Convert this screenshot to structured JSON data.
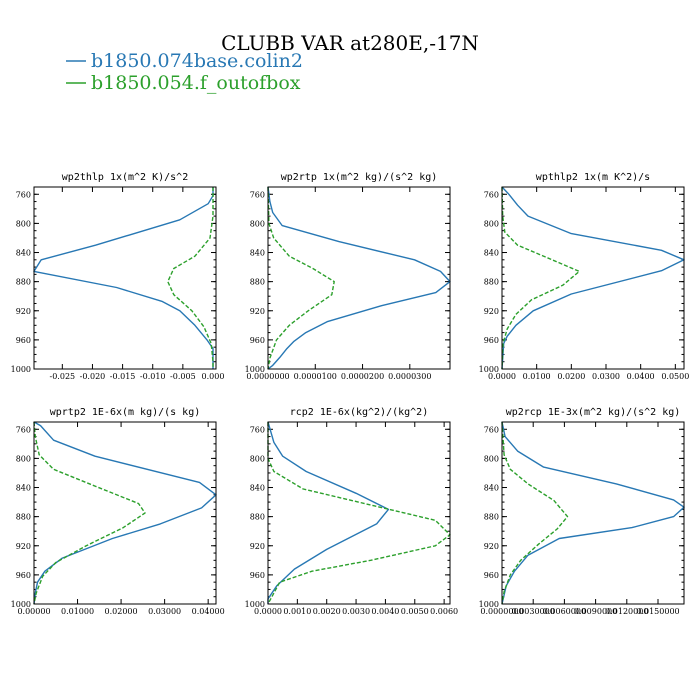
{
  "figure": {
    "title": "CLUBB VAR at280E,-17N"
  },
  "legend": {
    "entries": [
      {
        "label": "b1850.074base.colin2",
        "color": "#2878b4",
        "dashed": false
      },
      {
        "label": "b1850.054.f_outofbox",
        "color": "#2ca02c",
        "dashed": true
      }
    ]
  },
  "chart_data": [
    {
      "type": "line",
      "title": "wp2thlp  1x(m^2 K)/s^2",
      "y_label_ticks": [
        "760",
        "800",
        "840",
        "880",
        "920",
        "960",
        "1000"
      ],
      "x_label_ticks": [
        "-0.025",
        "-0.020",
        "-0.015",
        "-0.010",
        "-0.005",
        "0.000"
      ],
      "xlim": [
        -0.0297,
        0.0005
      ],
      "ylim": [
        1000,
        750
      ],
      "series": [
        {
          "name": "b1850.074base.colin2",
          "x": [
            0.0,
            0.0,
            -0.0008,
            -0.0055,
            -0.0195,
            -0.0285,
            -0.0297,
            -0.016,
            -0.0085,
            -0.0055,
            -0.003,
            -0.001,
            0.0,
            0.0,
            0.0
          ],
          "y": [
            750,
            762,
            773,
            795,
            830,
            850,
            866,
            888,
            907,
            920,
            940,
            960,
            972,
            990,
            1000
          ]
        },
        {
          "name": "b1850.054.f_outofbox",
          "x": [
            0.0,
            0.0,
            -0.0005,
            -0.003,
            -0.0065,
            -0.0075,
            -0.0065,
            -0.0035,
            -0.0015,
            -0.0003,
            0.0,
            0.0
          ],
          "y": [
            750,
            790,
            820,
            845,
            862,
            880,
            898,
            920,
            942,
            965,
            990,
            1000
          ]
        }
      ]
    },
    {
      "type": "line",
      "title": "wp2rtp  1x(m^2 kg)/(s^2 kg)",
      "y_label_ticks": [
        "760",
        "800",
        "840",
        "880",
        "920",
        "960",
        "1000"
      ],
      "x_label_ticks": [
        "0.0000000",
        "0.0000100",
        "0.0000200",
        "0.0000300"
      ],
      "xlim": [
        0.0,
        3.85e-05
      ],
      "ylim": [
        1000,
        750
      ],
      "series": [
        {
          "name": "b1850.074base.colin2",
          "x": [
            0.0,
            4e-07,
            1e-06,
            3e-06,
            1.5e-05,
            3.1e-05,
            3.65e-05,
            3.85e-05,
            3.55e-05,
            2.4e-05,
            1.25e-05,
            8e-06,
            5.5e-06,
            4e-06,
            2.5e-06,
            1e-06,
            0.0
          ],
          "y": [
            750,
            770,
            785,
            803,
            825,
            850,
            866,
            880,
            895,
            913,
            935,
            950,
            962,
            972,
            984,
            995,
            1000
          ]
        },
        {
          "name": "b1850.054.f_outofbox",
          "x": [
            0.0,
            2e-07,
            1.2e-06,
            4.5e-06,
            9.5e-06,
            1.4e-05,
            1.35e-05,
            8.5e-06,
            4.5e-06,
            1.8e-06,
            4e-07,
            0.0
          ],
          "y": [
            750,
            800,
            820,
            845,
            862,
            880,
            898,
            920,
            940,
            960,
            985,
            1000
          ]
        }
      ]
    },
    {
      "type": "line",
      "title": "wpthlp2  1x(m K^2)/s",
      "y_label_ticks": [
        "760",
        "800",
        "840",
        "880",
        "920",
        "960",
        "1000"
      ],
      "x_label_ticks": [
        "0.0000",
        "0.0100",
        "0.0200",
        "0.0300",
        "0.0400",
        "0.0500"
      ],
      "xlim": [
        0.0,
        0.0525
      ],
      "ylim": [
        1000,
        750
      ],
      "series": [
        {
          "name": "b1850.074base.colin2",
          "x": [
            0.0,
            0.002,
            0.0045,
            0.0075,
            0.02,
            0.046,
            0.0525,
            0.046,
            0.02,
            0.009,
            0.004,
            0.0015,
            0.0005,
            0.0
          ],
          "y": [
            750,
            760,
            775,
            790,
            814,
            837,
            850,
            865,
            897,
            920,
            940,
            955,
            965,
            1000
          ]
        },
        {
          "name": "b1850.054.f_outofbox",
          "x": [
            0.0,
            0.0002,
            0.0008,
            0.0045,
            0.0125,
            0.0223,
            0.0175,
            0.0085,
            0.004,
            0.0015,
            0.0003,
            0.0
          ],
          "y": [
            750,
            790,
            812,
            830,
            846,
            866,
            885,
            905,
            925,
            945,
            965,
            1000
          ]
        }
      ]
    },
    {
      "type": "line",
      "title": "wprtp2  1E-6x(m kg)/(s kg)",
      "y_label_ticks": [
        "760",
        "800",
        "840",
        "880",
        "920",
        "960",
        "1000"
      ],
      "x_label_ticks": [
        "0.00000",
        "0.01000",
        "0.02000",
        "0.03000",
        "0.04000"
      ],
      "xlim": [
        0.0,
        0.0418
      ],
      "ylim": [
        1000,
        750
      ],
      "series": [
        {
          "name": "b1850.074base.colin2",
          "x": [
            0.0,
            0.0015,
            0.0045,
            0.014,
            0.038,
            0.0418,
            0.0385,
            0.029,
            0.018,
            0.0065,
            0.0025,
            0.0008,
            0.0003,
            0.0
          ],
          "y": [
            750,
            755,
            775,
            797,
            833,
            850,
            868,
            890,
            910,
            937,
            955,
            970,
            985,
            1000
          ]
        },
        {
          "name": "b1850.054.f_outofbox",
          "x": [
            0.0,
            0.0003,
            0.0012,
            0.0045,
            0.014,
            0.024,
            0.0255,
            0.0205,
            0.012,
            0.005,
            0.002,
            0.0005,
            0.0
          ],
          "y": [
            750,
            770,
            795,
            815,
            838,
            862,
            875,
            895,
            920,
            943,
            962,
            985,
            1000
          ]
        }
      ]
    },
    {
      "type": "line",
      "title": "rcp2  1E-6x(kg^2)/(kg^2)",
      "y_label_ticks": [
        "760",
        "800",
        "840",
        "880",
        "920",
        "960",
        "1000"
      ],
      "x_label_ticks": [
        "0.0000",
        "0.0010",
        "0.0020",
        "0.0030",
        "0.0040",
        "0.0050",
        "0.0060"
      ],
      "xlim": [
        0.0,
        0.0062
      ],
      "ylim": [
        1000,
        750
      ],
      "series": [
        {
          "name": "b1850.074base.colin2",
          "x": [
            0.0,
            0.0002,
            0.0005,
            0.0013,
            0.003,
            0.0041,
            0.0037,
            0.002,
            0.0009,
            0.0003,
            0.0,
            0.0
          ],
          "y": [
            750,
            778,
            797,
            818,
            848,
            870,
            890,
            925,
            952,
            975,
            993,
            1000
          ]
        },
        {
          "name": "b1850.054.f_outofbox",
          "x": [
            0.0,
            0.0,
            0.0002,
            0.0012,
            0.0036,
            0.0057,
            0.0062,
            0.0057,
            0.0035,
            0.0015,
            0.0004,
            0.0
          ],
          "y": [
            750,
            800,
            818,
            842,
            865,
            885,
            905,
            920,
            940,
            955,
            970,
            1000
          ]
        }
      ]
    },
    {
      "type": "line",
      "title": "wp2rcp  1E-3x(m^2 kg)/(s^2 kg)",
      "y_label_ticks": [
        "760",
        "800",
        "840",
        "880",
        "920",
        "960",
        "1000"
      ],
      "x_label_ticks": [
        "0.0000000",
        "0.0030000",
        "0.0060000",
        "0.0090000",
        "0.0120000",
        "0.0150000"
      ],
      "xlim": [
        0.0,
        0.0175
      ],
      "ylim": [
        1000,
        750
      ],
      "series": [
        {
          "name": "b1850.074base.colin2",
          "x": [
            0.0,
            0.0003,
            0.0015,
            0.004,
            0.011,
            0.0165,
            0.0175,
            0.0165,
            0.0125,
            0.0055,
            0.0025,
            0.0012,
            0.0004,
            0.0
          ],
          "y": [
            750,
            770,
            790,
            812,
            835,
            857,
            867,
            880,
            895,
            910,
            933,
            955,
            975,
            1000
          ]
        },
        {
          "name": "b1850.054.f_outofbox",
          "x": [
            0.0,
            0.0002,
            0.0008,
            0.0025,
            0.005,
            0.0063,
            0.0053,
            0.0035,
            0.0018,
            0.0008,
            0.0002,
            0.0
          ],
          "y": [
            750,
            795,
            815,
            835,
            858,
            880,
            897,
            918,
            940,
            960,
            983,
            1000
          ]
        }
      ]
    }
  ]
}
